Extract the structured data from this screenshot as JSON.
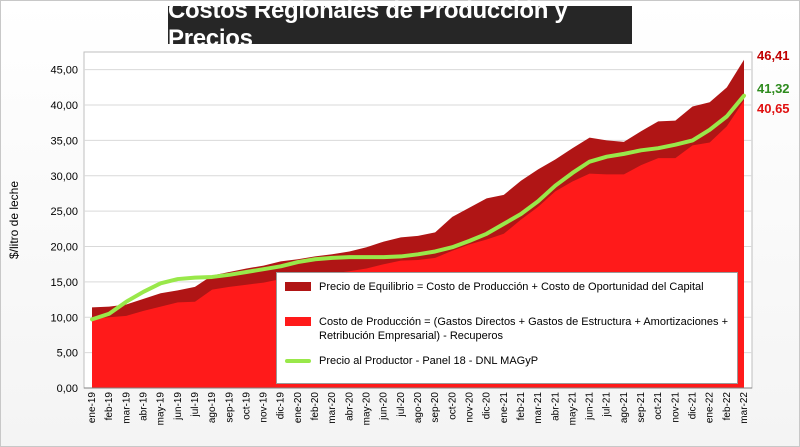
{
  "chart_data": {
    "type": "area",
    "title": "Costos Regionales de Producción y Precios",
    "xlabel": "",
    "ylabel": "$/litro de leche",
    "ylim": [
      0,
      47.5
    ],
    "yticks": [
      "0,00",
      "5,00",
      "10,00",
      "15,00",
      "20,00",
      "25,00",
      "30,00",
      "35,00",
      "40,00",
      "45,00"
    ],
    "ytick_values": [
      0,
      5,
      10,
      15,
      20,
      25,
      30,
      35,
      40,
      45
    ],
    "categories": [
      "ene-19",
      "feb-19",
      "mar-19",
      "abr-19",
      "may-19",
      "jun-19",
      "jul-19",
      "ago-19",
      "sep-19",
      "oct-19",
      "nov-19",
      "dic-19",
      "ene-20",
      "feb-20",
      "mar-20",
      "abr-20",
      "may-20",
      "jun-20",
      "jul-20",
      "ago-20",
      "sep-20",
      "oct-20",
      "nov-20",
      "dic-20",
      "ene-21",
      "feb-21",
      "mar-21",
      "abr-21",
      "may-21",
      "jun-21",
      "jul-21",
      "ago-21",
      "sep-21",
      "oct-21",
      "nov-21",
      "dic-21",
      "ene-22",
      "feb-22",
      "mar-22"
    ],
    "series": [
      {
        "name": "Precio de Equilibrio = Costo de Producción + Costo de Oportunidad del Capital",
        "kind": "area",
        "color": "#b01515",
        "values": [
          11.4,
          11.5,
          11.8,
          12.6,
          13.4,
          13.8,
          14.3,
          15.9,
          16.4,
          16.9,
          17.3,
          17.9,
          18.2,
          18.6,
          18.9,
          19.3,
          19.9,
          20.7,
          21.3,
          21.5,
          22.0,
          24.2,
          25.5,
          26.8,
          27.3,
          29.3,
          30.9,
          32.3,
          33.9,
          35.4,
          35.0,
          34.8,
          36.3,
          37.7,
          37.8,
          39.8,
          40.4,
          42.5,
          46.41
        ]
      },
      {
        "name": "Costo de Producción = (Gastos Directos + Gastos de Estructura + Amortizaciones + Retribución Empresarial) - Recuperos",
        "kind": "area",
        "color": "#ff1a1a",
        "values": [
          9.8,
          10.0,
          10.2,
          10.9,
          11.5,
          12.1,
          12.2,
          13.9,
          14.3,
          14.6,
          14.9,
          15.4,
          15.6,
          16.0,
          16.2,
          16.5,
          16.9,
          17.5,
          18.0,
          18.1,
          18.4,
          19.4,
          20.3,
          21.0,
          21.8,
          23.8,
          25.6,
          27.8,
          29.2,
          30.3,
          30.2,
          30.2,
          31.5,
          32.5,
          32.5,
          34.3,
          34.7,
          37.0,
          40.65
        ]
      },
      {
        "name": "Precio al Productor - Panel 18 - DNL MAGyP",
        "kind": "line",
        "color": "#99e84a",
        "values": [
          9.7,
          10.5,
          12.2,
          13.6,
          14.8,
          15.4,
          15.6,
          15.7,
          16.0,
          16.4,
          16.8,
          17.2,
          17.8,
          18.2,
          18.4,
          18.5,
          18.5,
          18.5,
          18.6,
          18.9,
          19.3,
          19.9,
          20.8,
          21.8,
          23.2,
          24.6,
          26.4,
          28.6,
          30.4,
          32.0,
          32.7,
          33.1,
          33.6,
          33.9,
          34.4,
          35.0,
          36.5,
          38.4,
          41.32
        ]
      }
    ],
    "end_labels": [
      {
        "text": "46,41",
        "color": "#c00000"
      },
      {
        "text": "41,32",
        "color": "#2e8b1e"
      },
      {
        "text": "40,65",
        "color": "#e01010"
      }
    ],
    "legend_position": "inside-bottom-right",
    "grid": true
  }
}
